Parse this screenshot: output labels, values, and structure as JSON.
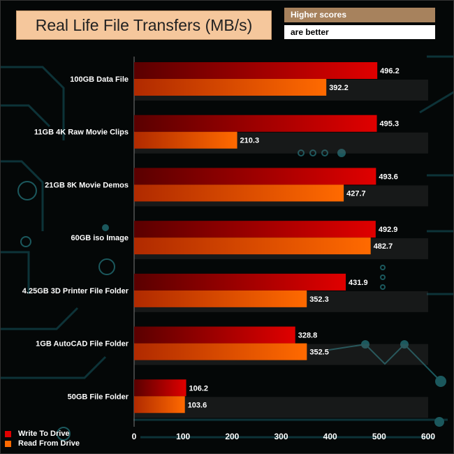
{
  "header": {
    "title": "Real Life File Transfers (MB/s)",
    "note_line1": "Higher scores",
    "note_line2": "are better"
  },
  "colors": {
    "write": "#e00000",
    "read": "#ff6a00",
    "title_bg": "#f5c79c",
    "note_bg": "#a7825d"
  },
  "chart_data": {
    "type": "bar",
    "orientation": "horizontal",
    "title": "Real Life File Transfers (MB/s)",
    "categories": [
      "100GB Data File",
      "11GB 4K Raw Movie Clips",
      "21GB 8K Movie Demos",
      "60GB iso Image",
      "4.25GB 3D Printer File Folder",
      "1GB AutoCAD File Folder",
      "50GB File Folder"
    ],
    "series": [
      {
        "name": "Write To  Drive",
        "values": [
          496.2,
          495.3,
          493.6,
          492.9,
          431.9,
          328.8,
          106.2
        ]
      },
      {
        "name": "Read From  Drive",
        "values": [
          392.2,
          210.3,
          427.7,
          482.7,
          352.3,
          352.5,
          103.6
        ]
      }
    ],
    "xlim": [
      0,
      600
    ],
    "xticks": [
      0,
      100,
      200,
      300,
      400,
      500,
      600
    ],
    "xlabel": "",
    "ylabel": "",
    "legend": "bottom-left"
  }
}
